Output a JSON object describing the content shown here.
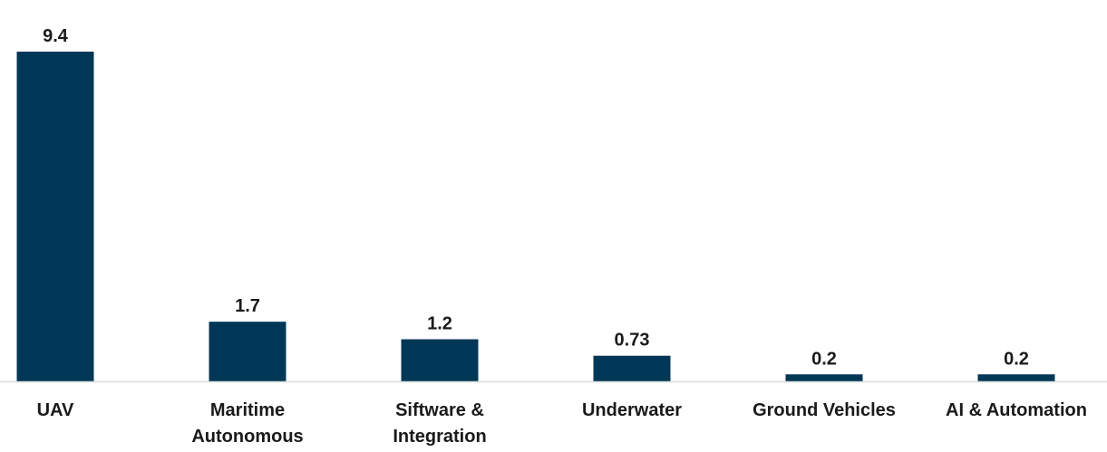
{
  "chart_data": {
    "type": "bar",
    "title": "",
    "xlabel": "",
    "ylabel": "",
    "categories": [
      [
        "UAV"
      ],
      [
        "Maritime",
        "Autonomous"
      ],
      [
        "Siftware &",
        "Integration"
      ],
      [
        "Underwater"
      ],
      [
        "Ground Vehicles"
      ],
      [
        "AI & Automation"
      ]
    ],
    "values": [
      9.4,
      1.7,
      1.2,
      0.73,
      0.2,
      0.2
    ],
    "value_labels": [
      "9.4",
      "1.7",
      "1.2",
      "0.73",
      "0.2",
      "0.2"
    ],
    "ylim": [
      0,
      9.4
    ],
    "grid": false,
    "legend": "none",
    "colors": {
      "bar": "#003756",
      "axis": "#d9d9d9",
      "text": "#1a1a1a"
    }
  }
}
